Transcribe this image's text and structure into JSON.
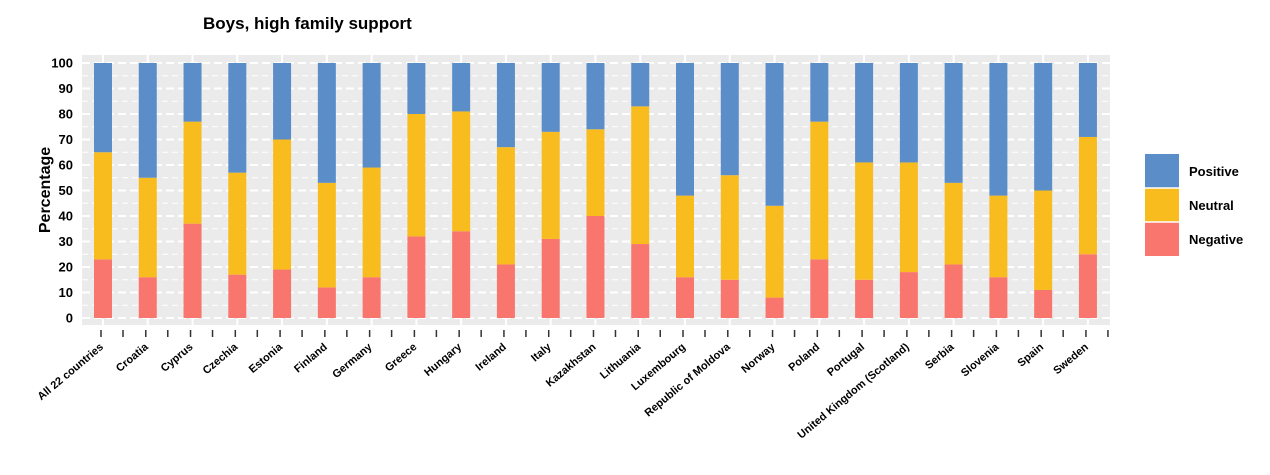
{
  "chart_data": {
    "type": "bar",
    "stacked": true,
    "title": "Boys, high family support",
    "xlabel": "",
    "ylabel": "Percentage",
    "ylim": [
      0,
      100
    ],
    "yticks": [
      0,
      10,
      20,
      30,
      40,
      50,
      60,
      70,
      80,
      90,
      100
    ],
    "grid": "dashed, light gray",
    "legend_position": "right",
    "categories": [
      "All 22 countries",
      "Croatia",
      "Cyprus",
      "Czechia",
      "Estonia",
      "Finland",
      "Germany",
      "Greece",
      "Hungary",
      "Ireland",
      "Italy",
      "Kazakhstan",
      "Lithuania",
      "Luxembourg",
      "Republic of Moldova",
      "Norway",
      "Poland",
      "Portugal",
      "United Kingdom (Scotland)",
      "Serbia",
      "Slovenia",
      "Spain",
      "Sweden"
    ],
    "series": [
      {
        "name": "Negative",
        "color": "#f8766d",
        "values": [
          23,
          16,
          37,
          17,
          19,
          12,
          16,
          32,
          34,
          21,
          31,
          40,
          29,
          16,
          15,
          8,
          23,
          15,
          18,
          21,
          16,
          11,
          25
        ]
      },
      {
        "name": "Neutral",
        "color": "#f9bc1e",
        "values": [
          42,
          39,
          40,
          40,
          51,
          41,
          43,
          48,
          47,
          46,
          42,
          34,
          54,
          32,
          41,
          36,
          54,
          46,
          43,
          32,
          32,
          39,
          46
        ]
      },
      {
        "name": "Positive",
        "color": "#5b8dc9",
        "values": [
          35,
          45,
          23,
          43,
          30,
          47,
          41,
          20,
          19,
          33,
          27,
          26,
          17,
          52,
          44,
          56,
          23,
          39,
          39,
          47,
          52,
          50,
          29
        ]
      }
    ],
    "legend_order": [
      "Positive",
      "Neutral",
      "Negative"
    ]
  }
}
